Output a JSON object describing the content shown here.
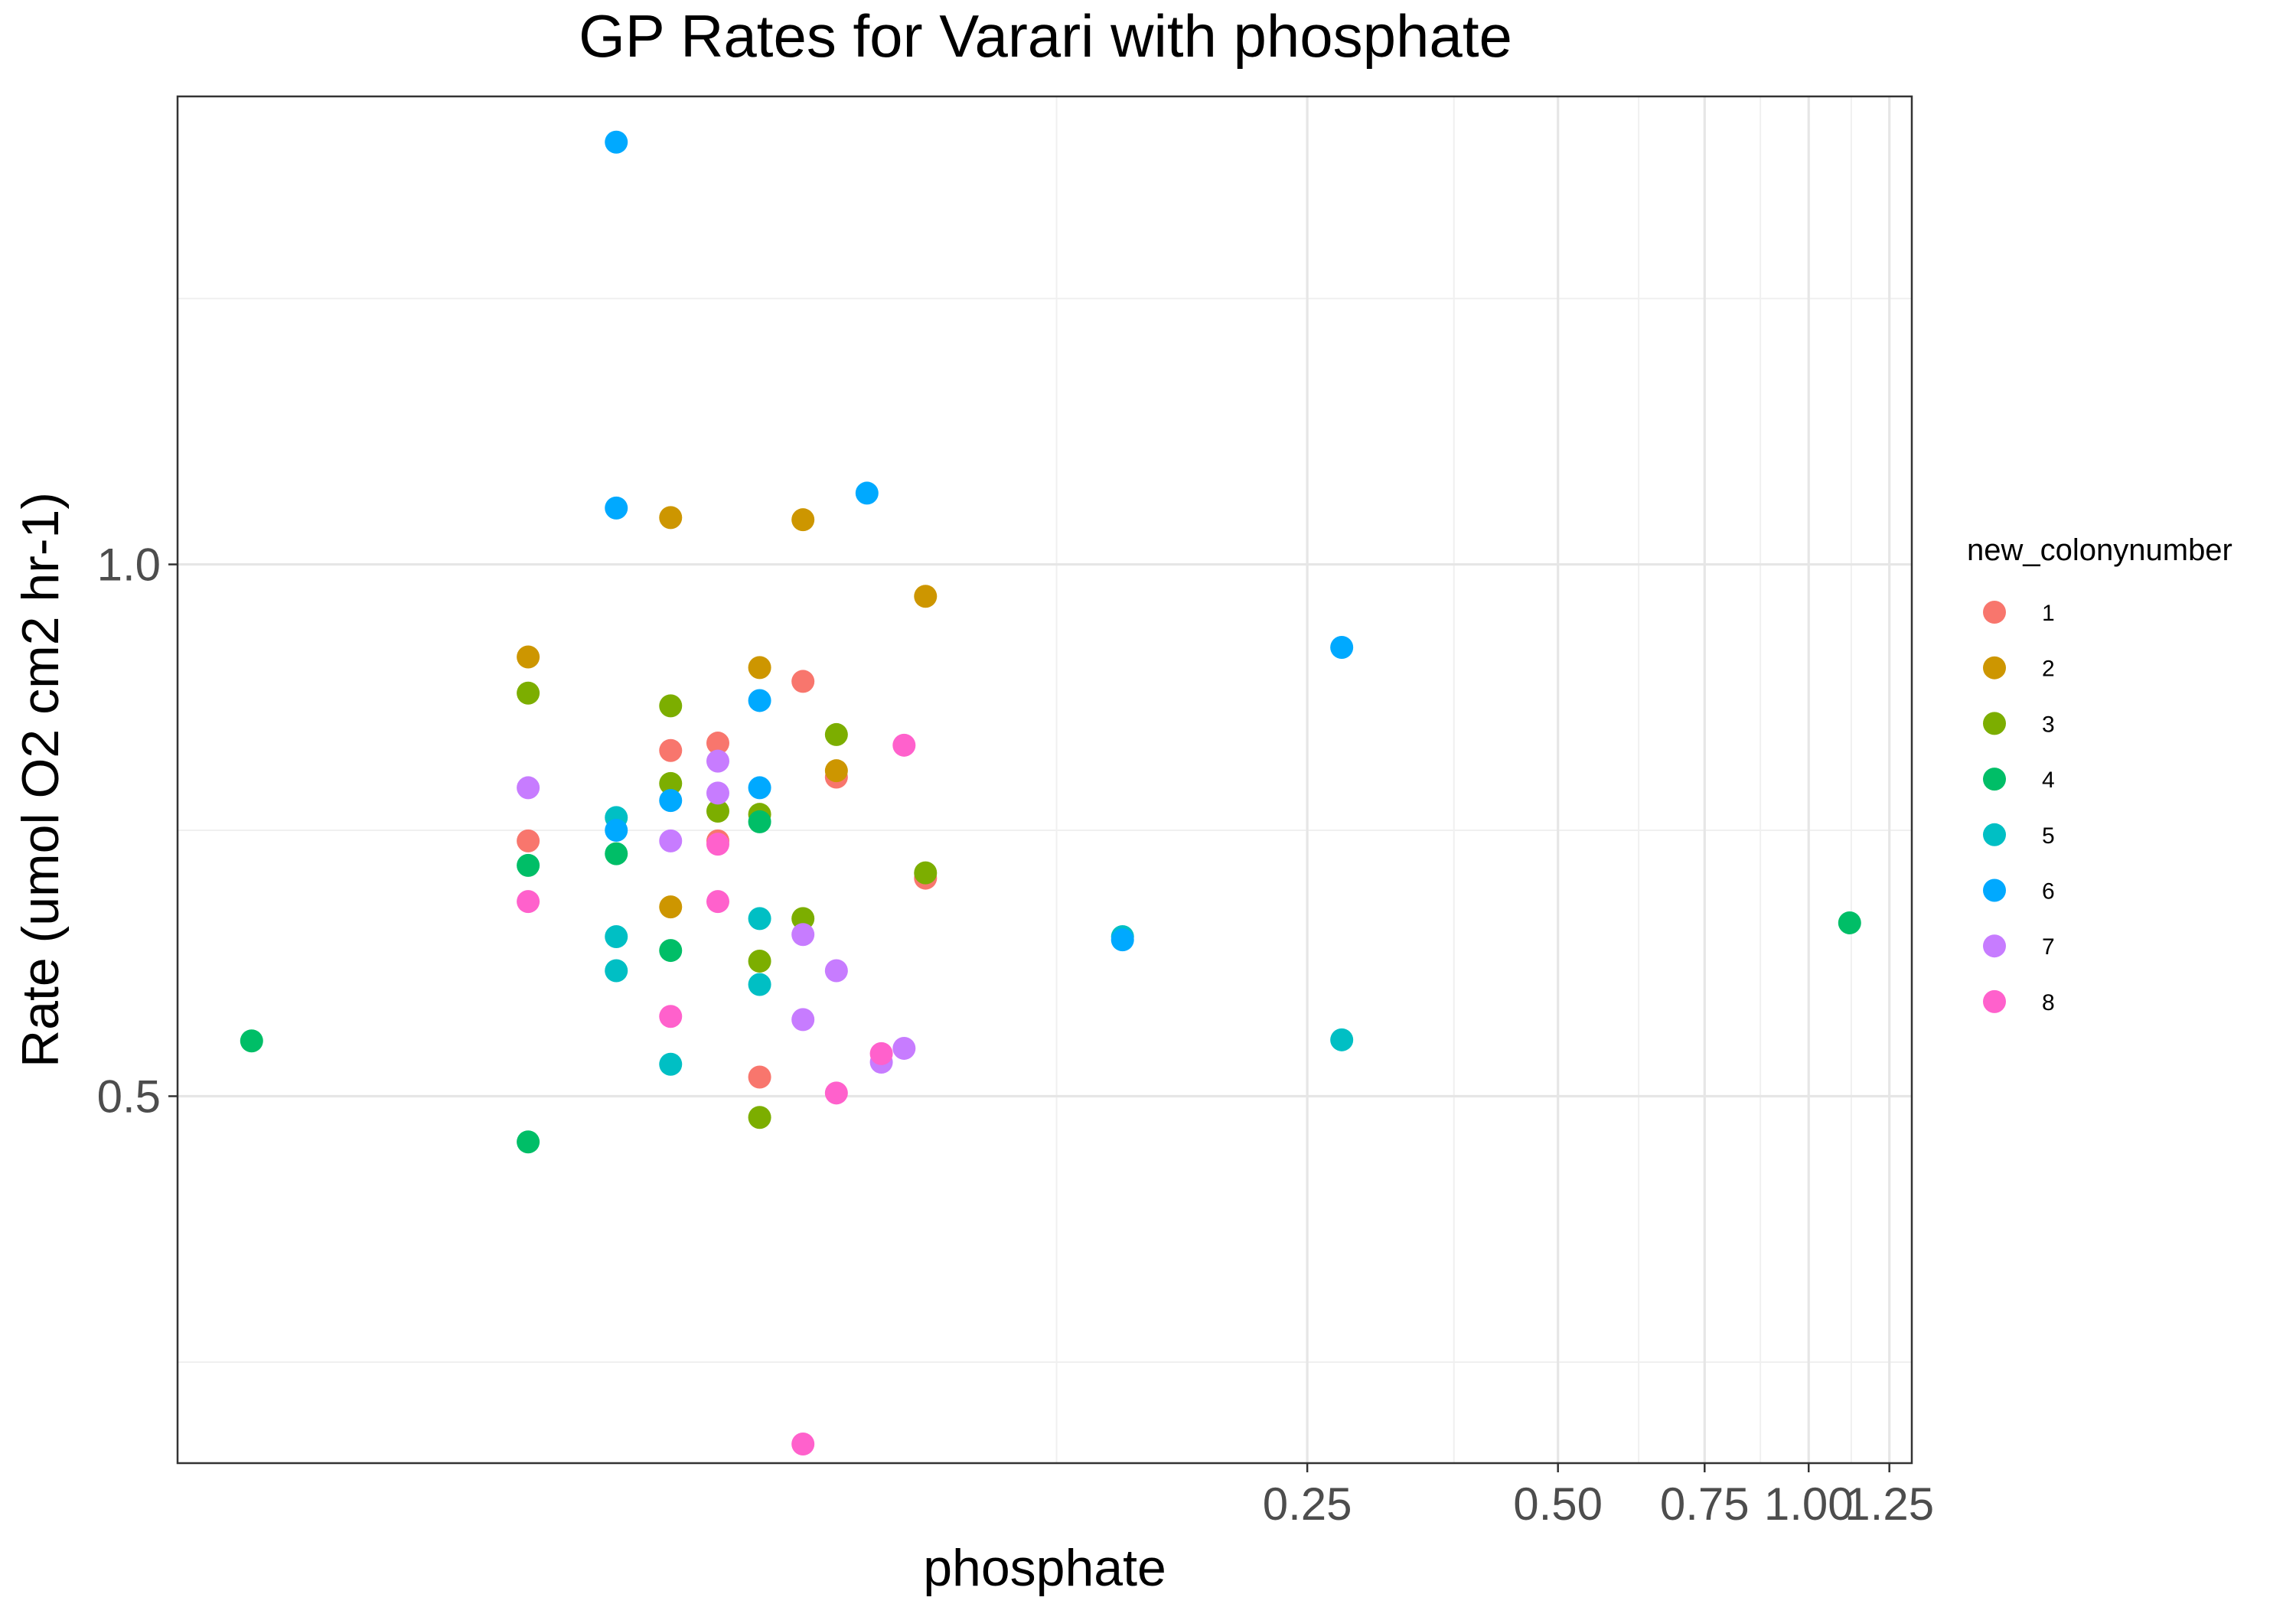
{
  "chart_data": {
    "type": "scatter",
    "title": "GP Rates for Varari with phosphate",
    "xlabel": "phosphate",
    "ylabel": "Rate (umol O2 cm2 hr-1)",
    "x_scale": "log10",
    "xlim": [
      0.011,
      1.33
    ],
    "ylim": [
      0.155,
      1.44
    ],
    "x_ticks": [
      {
        "value": 0.25,
        "label": "0.25"
      },
      {
        "value": 0.5,
        "label": "0.50"
      },
      {
        "value": 0.75,
        "label": "0.75"
      },
      {
        "value": 1.0,
        "label": "1.00"
      },
      {
        "value": 1.25,
        "label": "1.25"
      }
    ],
    "x_minor_grid": [
      0.125,
      0.375,
      0.625,
      0.875,
      1.125
    ],
    "y_ticks": [
      {
        "value": 0.5,
        "label": "0.5"
      },
      {
        "value": 1.0,
        "label": "1.0"
      }
    ],
    "y_minor_grid": [
      0.25,
      0.75,
      1.25
    ],
    "grid": true,
    "legend": {
      "title": "new_colonynumber",
      "placement": "right"
    },
    "series": [
      {
        "name": "1",
        "color": "#F8766D",
        "points": [
          {
            "x": 0.029,
            "y": 0.74
          },
          {
            "x": 0.043,
            "y": 0.825
          },
          {
            "x": 0.049,
            "y": 0.832
          },
          {
            "x": 0.049,
            "y": 0.74
          },
          {
            "x": 0.055,
            "y": 0.518
          },
          {
            "x": 0.062,
            "y": 0.89
          },
          {
            "x": 0.068,
            "y": 0.8
          },
          {
            "x": 0.087,
            "y": 0.705
          }
        ]
      },
      {
        "name": "2",
        "color": "#CD9600",
        "points": [
          {
            "x": 0.029,
            "y": 0.913
          },
          {
            "x": 0.043,
            "y": 1.044
          },
          {
            "x": 0.043,
            "y": 0.678
          },
          {
            "x": 0.055,
            "y": 0.903
          },
          {
            "x": 0.062,
            "y": 1.042
          },
          {
            "x": 0.068,
            "y": 0.806
          },
          {
            "x": 0.087,
            "y": 0.97
          }
        ]
      },
      {
        "name": "3",
        "color": "#7CAE00",
        "points": [
          {
            "x": 0.029,
            "y": 0.879
          },
          {
            "x": 0.043,
            "y": 0.867
          },
          {
            "x": 0.043,
            "y": 0.794
          },
          {
            "x": 0.049,
            "y": 0.768
          },
          {
            "x": 0.055,
            "y": 0.765
          },
          {
            "x": 0.055,
            "y": 0.627
          },
          {
            "x": 0.055,
            "y": 0.48
          },
          {
            "x": 0.062,
            "y": 0.667
          },
          {
            "x": 0.068,
            "y": 0.84
          },
          {
            "x": 0.087,
            "y": 0.71
          }
        ]
      },
      {
        "name": "4",
        "color": "#00BE67",
        "points": [
          {
            "x": 0.0135,
            "y": 0.552
          },
          {
            "x": 0.029,
            "y": 0.717
          },
          {
            "x": 0.029,
            "y": 0.457
          },
          {
            "x": 0.037,
            "y": 0.728
          },
          {
            "x": 0.043,
            "y": 0.637
          },
          {
            "x": 0.055,
            "y": 0.758
          },
          {
            "x": 1.12,
            "y": 0.663
          }
        ]
      },
      {
        "name": "5",
        "color": "#00BFC4",
        "points": [
          {
            "x": 0.037,
            "y": 0.762
          },
          {
            "x": 0.037,
            "y": 0.65
          },
          {
            "x": 0.037,
            "y": 0.618
          },
          {
            "x": 0.043,
            "y": 0.53
          },
          {
            "x": 0.055,
            "y": 0.667
          },
          {
            "x": 0.055,
            "y": 0.605
          },
          {
            "x": 0.15,
            "y": 0.65
          },
          {
            "x": 0.275,
            "y": 0.553
          }
        ]
      },
      {
        "name": "6",
        "color": "#00A9FF",
        "points": [
          {
            "x": 0.037,
            "y": 1.397
          },
          {
            "x": 0.037,
            "y": 1.053
          },
          {
            "x": 0.037,
            "y": 0.75
          },
          {
            "x": 0.043,
            "y": 0.778
          },
          {
            "x": 0.055,
            "y": 0.872
          },
          {
            "x": 0.055,
            "y": 0.79
          },
          {
            "x": 0.074,
            "y": 1.067
          },
          {
            "x": 0.15,
            "y": 0.647
          },
          {
            "x": 0.275,
            "y": 0.922
          }
        ]
      },
      {
        "name": "7",
        "color": "#C77CFF",
        "points": [
          {
            "x": 0.029,
            "y": 0.79
          },
          {
            "x": 0.043,
            "y": 0.74
          },
          {
            "x": 0.049,
            "y": 0.815
          },
          {
            "x": 0.049,
            "y": 0.785
          },
          {
            "x": 0.062,
            "y": 0.652
          },
          {
            "x": 0.062,
            "y": 0.572
          },
          {
            "x": 0.068,
            "y": 0.618
          },
          {
            "x": 0.077,
            "y": 0.532
          },
          {
            "x": 0.082,
            "y": 0.545
          }
        ]
      },
      {
        "name": "8",
        "color": "#FF61CC",
        "points": [
          {
            "x": 0.029,
            "y": 0.683
          },
          {
            "x": 0.043,
            "y": 0.575
          },
          {
            "x": 0.049,
            "y": 0.737
          },
          {
            "x": 0.049,
            "y": 0.683
          },
          {
            "x": 0.062,
            "y": 0.173
          },
          {
            "x": 0.068,
            "y": 0.503
          },
          {
            "x": 0.077,
            "y": 0.54
          },
          {
            "x": 0.082,
            "y": 0.83
          }
        ]
      }
    ]
  }
}
